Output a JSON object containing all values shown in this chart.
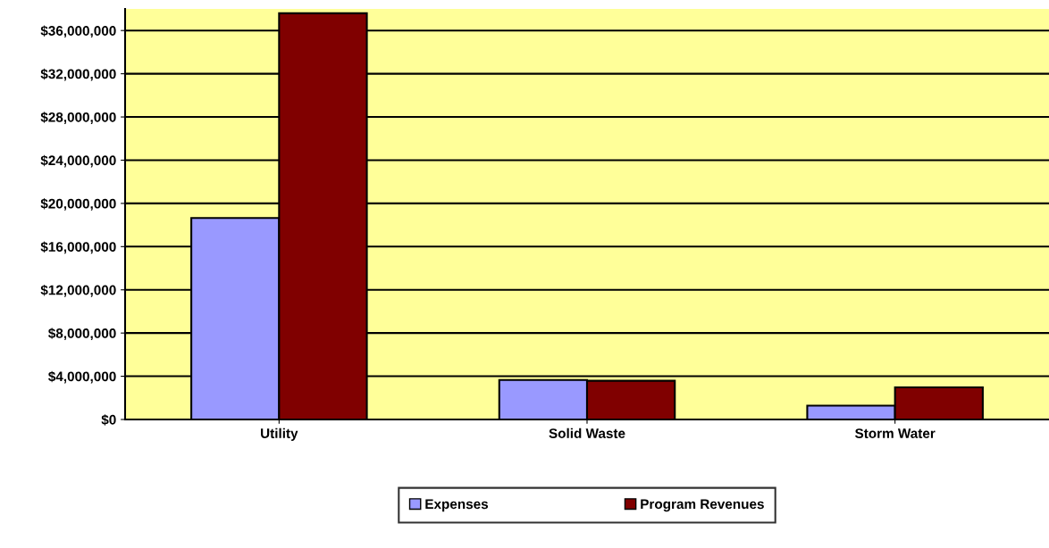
{
  "chart_data": {
    "type": "bar",
    "categories": [
      "Utility",
      "Solid Waste",
      "Storm Water"
    ],
    "series": [
      {
        "name": "Expenses",
        "color": "#9999ff",
        "values": [
          18650000,
          3660000,
          1280000
        ]
      },
      {
        "name": "Program Revenues",
        "color": "#800000",
        "values": [
          37600000,
          3580000,
          2980000
        ]
      }
    ],
    "ylim": [
      0,
      38000000
    ],
    "yticks": [
      {
        "value": 0,
        "label": "$0"
      },
      {
        "value": 4000000,
        "label": "$4,000,000"
      },
      {
        "value": 8000000,
        "label": "$8,000,000"
      },
      {
        "value": 12000000,
        "label": "$12,000,000"
      },
      {
        "value": 16000000,
        "label": "$16,000,000"
      },
      {
        "value": 20000000,
        "label": "$20,000,000"
      },
      {
        "value": 24000000,
        "label": "$24,000,000"
      },
      {
        "value": 28000000,
        "label": "$28,000,000"
      },
      {
        "value": 32000000,
        "label": "$32,000,000"
      },
      {
        "value": 36000000,
        "label": "$36,000,000"
      }
    ],
    "grid": "y",
    "legend": "bottom"
  }
}
